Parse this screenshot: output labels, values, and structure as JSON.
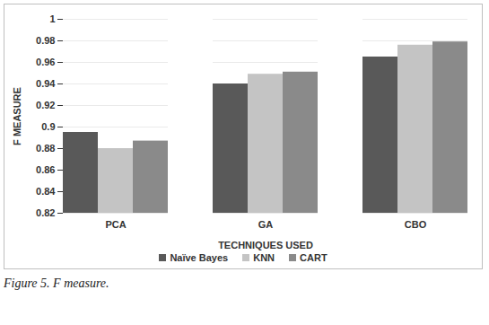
{
  "chart_data": {
    "type": "bar",
    "x_label": "TECHNIQUES USED",
    "y_label": "F MEASURE",
    "caption": "Figure 5. F measure.",
    "categories": [
      "PCA",
      "GA",
      "CBO"
    ],
    "series": [
      {
        "name": "Naïve Bayes",
        "color": "#595959",
        "values": [
          0.895,
          0.94,
          0.965
        ]
      },
      {
        "name": "KNN",
        "color": "#c4c4c4",
        "values": [
          0.88,
          0.949,
          0.976
        ]
      },
      {
        "name": "CART",
        "color": "#8a8a8a",
        "values": [
          0.887,
          0.951,
          0.979
        ]
      }
    ],
    "ylim": [
      0.82,
      1
    ],
    "yticks": [
      0.82,
      0.84,
      0.86,
      0.88,
      0.9,
      0.92,
      0.94,
      0.96,
      0.98,
      1
    ],
    "grid": true,
    "legend": "bottom"
  }
}
